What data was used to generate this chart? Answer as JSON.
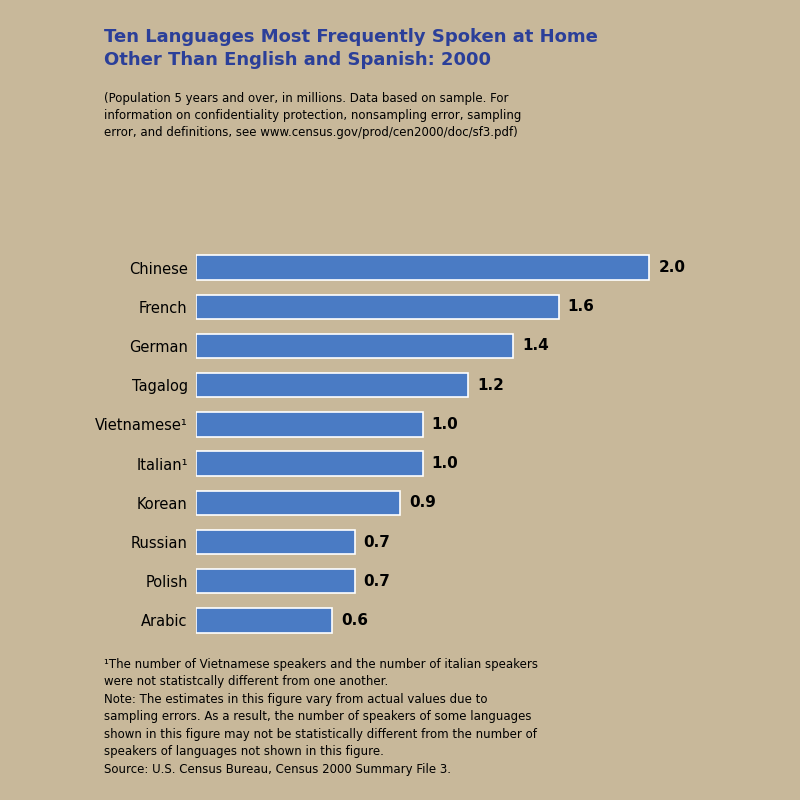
{
  "title": "Ten Languages Most Frequently Spoken at Home\nOther Than English and Spanish: 2000",
  "subtitle": "(Population 5 years and over, in millions. Data based on sample. For\ninformation on confidentiality protection, nonsampling error, sampling\nerror, and definitions, see www.census.gov/prod/cen2000/doc/sf3.pdf)",
  "languages": [
    "Chinese",
    "French",
    "German",
    "Tagalog",
    "Vietnamese¹",
    "Italian¹",
    "Korean",
    "Russian",
    "Polish",
    "Arabic"
  ],
  "values": [
    2.0,
    1.6,
    1.4,
    1.2,
    1.0,
    1.0,
    0.9,
    0.7,
    0.7,
    0.6
  ],
  "bar_color": "#4A7BC4",
  "background_color": "#C8B89A",
  "title_color": "#2B3F99",
  "text_color": "#000000",
  "footnote": "¹The number of Vietnamese speakers and the number of italian speakers\nwere not statistcally different from one another.\nNote: The estimates in this figure vary from actual values due to\nsampling errors. As a result, the number of speakers of some languages\nshown in this figure may not be statistically different from the number of\nspeakers of languages not shown in this figure.\nSource: U.S. Census Bureau, Census 2000 Summary File 3.",
  "xlim": [
    0,
    2.4
  ],
  "title_fontsize": 13,
  "subtitle_fontsize": 8.5,
  "label_fontsize": 10.5,
  "value_fontsize": 11,
  "footnote_fontsize": 8.5
}
